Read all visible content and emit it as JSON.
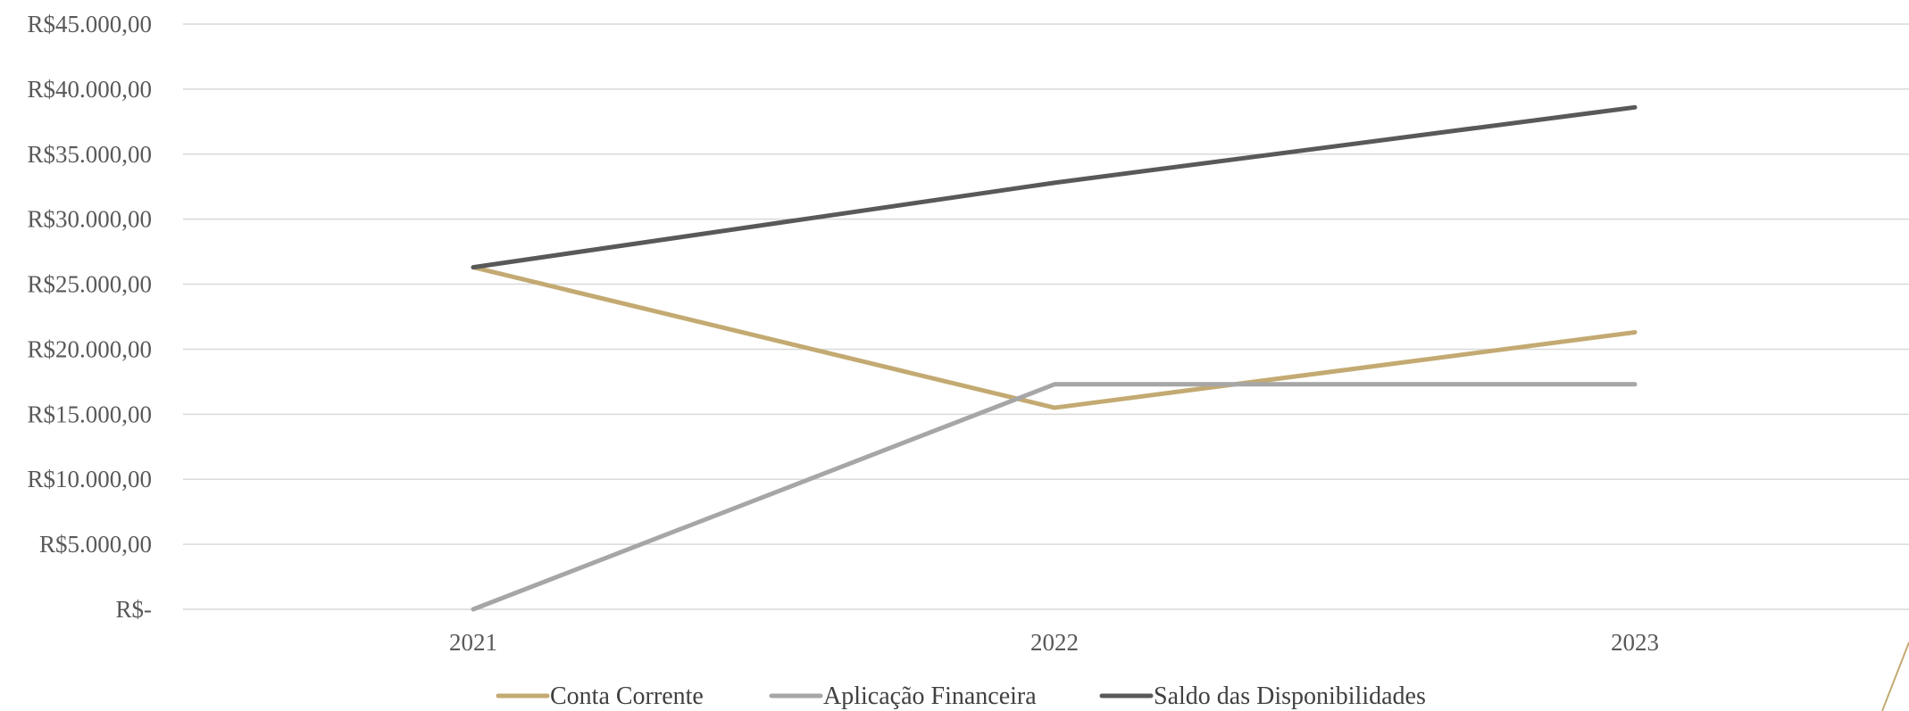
{
  "chart_data": {
    "type": "line",
    "categories": [
      "2021",
      "2022",
      "2023"
    ],
    "series": [
      {
        "name": "Conta Corrente",
        "color": "#C3AA72",
        "values": [
          26300,
          15500,
          21300
        ]
      },
      {
        "name": "Aplicação Financeira",
        "color": "#A6A6A6",
        "values": [
          0,
          17300,
          17300
        ]
      },
      {
        "name": "Saldo das Disponibilidades",
        "color": "#595959",
        "values": [
          26300,
          32800,
          38600
        ]
      }
    ],
    "ylim": [
      0,
      45000
    ],
    "yticks": [
      0,
      5000,
      10000,
      15000,
      20000,
      25000,
      30000,
      35000,
      40000,
      45000
    ],
    "ytick_labels": [
      "R$-",
      "R$5.000,00",
      "R$10.000,00",
      "R$15.000,00",
      "R$20.000,00",
      "R$25.000,00",
      "R$30.000,00",
      "R$35.000,00",
      "R$40.000,00",
      "R$45.000,00"
    ],
    "grid": true,
    "legend_position": "bottom",
    "gridline_color": "#D9D9D9"
  }
}
